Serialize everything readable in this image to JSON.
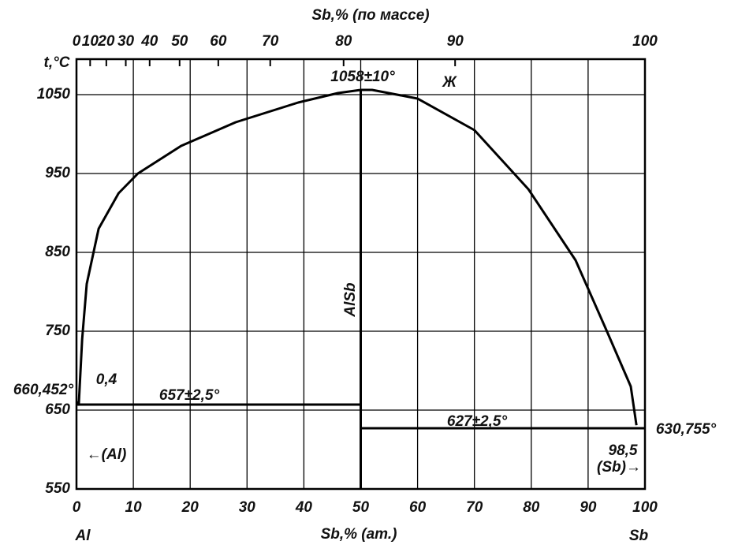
{
  "chart_data": {
    "type": "line",
    "title": "Sb,% (по массе)",
    "x_label": "Sb,% (ат.)",
    "y_label": "t,°C",
    "x_end_labels": [
      "Al",
      "Sb"
    ],
    "xlim": [
      0,
      100
    ],
    "xticks": [
      0,
      10,
      20,
      30,
      40,
      50,
      60,
      70,
      80,
      90,
      100
    ],
    "x2ticks": [
      0,
      10,
      20,
      30,
      40,
      50,
      60,
      70,
      80,
      90,
      100
    ],
    "ylim": [
      550,
      1095
    ],
    "yticks": [
      550,
      650,
      750,
      850,
      950,
      1050
    ],
    "grid": true,
    "series": [
      {
        "color": "#000000",
        "x": [
          0,
          0.4,
          1,
          1.8,
          3.9,
          7.4,
          10.8,
          18.4,
          28,
          39,
          46,
          50,
          52,
          60,
          70,
          79.5,
          87.8,
          93.3,
          97.5,
          98.5
        ],
        "values": [
          660.452,
          657,
          740,
          810,
          880,
          925,
          950,
          985,
          1015,
          1040,
          1052,
          1056,
          1056,
          1045,
          1005,
          930,
          840,
          750,
          680,
          630.755
        ]
      },
      {
        "color": "#000000",
        "x": [
          0,
          50
        ],
        "values": [
          657,
          657
        ]
      },
      {
        "color": "#000000",
        "x": [
          50,
          100
        ],
        "values": [
          627,
          627
        ]
      },
      {
        "color": "#000000",
        "x": [
          50,
          50
        ],
        "values": [
          550,
          1056
        ]
      }
    ],
    "annotations": [
      "1058±10°",
      "Ж",
      "AlSb",
      "660,452°",
      "0,4",
      "657±2,5°",
      "627±2,5°",
      "630,755°",
      "98,5",
      "←(Al)",
      "(Sb)→"
    ]
  }
}
